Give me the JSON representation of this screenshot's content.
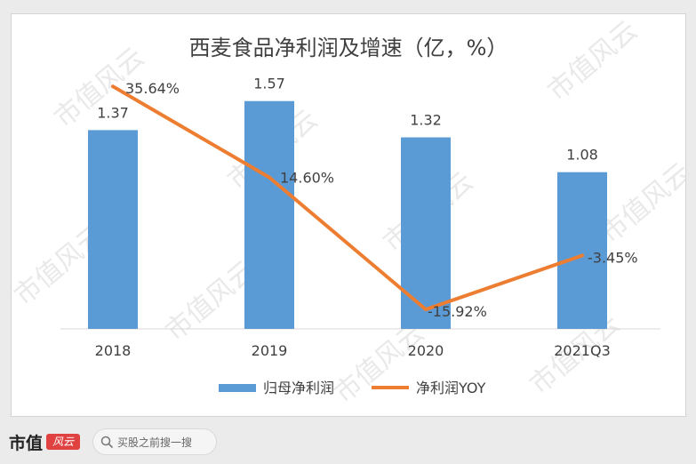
{
  "chart_data": {
    "type": "bar",
    "title": "西麦食品净利润及增速（亿，%）",
    "categories": [
      "2018",
      "2019",
      "2020",
      "2021Q3"
    ],
    "series": [
      {
        "name": "归母净利润",
        "type": "bar",
        "values": [
          1.37,
          1.57,
          1.32,
          1.08
        ],
        "labels": [
          "1.37",
          "1.57",
          "1.32",
          "1.08"
        ],
        "color": "#5b9bd5"
      },
      {
        "name": "净利润YOY",
        "type": "line",
        "values": [
          35.64,
          14.6,
          -15.92,
          -3.45
        ],
        "labels": [
          "35.64%",
          "14.60%",
          "-15.92%",
          "-3.45%"
        ],
        "color": "#ed7d31"
      }
    ],
    "ylim_bar": [
      0,
      1.85
    ],
    "ylim_line": [
      -20,
      40
    ],
    "legend": "bottom",
    "grid": false
  },
  "watermark": {
    "text": "市值风云"
  },
  "footer": {
    "brand_text": "市值",
    "brand_mark": "风云",
    "search_placeholder": "买股之前搜一搜"
  }
}
